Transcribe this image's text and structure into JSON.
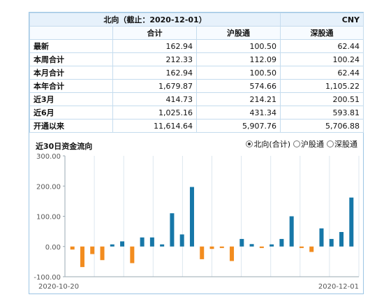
{
  "table": {
    "title": "北向（截止：2020-12-01）",
    "currency": "CNY",
    "columns": [
      "合计",
      "沪股通",
      "深股通"
    ],
    "rows": [
      {
        "label": "最新",
        "values": [
          "162.94",
          "100.50",
          "62.44"
        ]
      },
      {
        "label": "本周合计",
        "values": [
          "212.33",
          "112.09",
          "100.24"
        ]
      },
      {
        "label": "本月合计",
        "values": [
          "162.94",
          "100.50",
          "62.44"
        ]
      },
      {
        "label": "本年合计",
        "values": [
          "1,679.87",
          "574.66",
          "1,105.22"
        ]
      },
      {
        "label": "近3月",
        "values": [
          "414.73",
          "214.21",
          "200.51"
        ]
      },
      {
        "label": "近6月",
        "values": [
          "1,025.16",
          "431.34",
          "593.81"
        ]
      },
      {
        "label": "开通以来",
        "values": [
          "11,614.64",
          "5,907.76",
          "5,706.88"
        ]
      }
    ]
  },
  "chart_section": {
    "title": "近30日资金流向",
    "options": [
      {
        "label": "北向(合计)",
        "selected": true
      },
      {
        "label": "沪股通",
        "selected": false
      },
      {
        "label": "深股通",
        "selected": false
      }
    ]
  },
  "chart_data": {
    "type": "bar",
    "title": "近30日资金流向",
    "ylim": [
      -100,
      300
    ],
    "yticks": [
      "300.00",
      "200.00",
      "100.00",
      "0.00",
      "-100.00"
    ],
    "ytick_values": [
      300,
      200,
      100,
      0,
      -100
    ],
    "x_start_label": "2020-10-20",
    "x_end_label": "2020-12-01",
    "values": [
      -10,
      -68,
      -25,
      -45,
      7,
      17,
      -55,
      30,
      30,
      7,
      110,
      40,
      197,
      -42,
      -8,
      -5,
      -48,
      25,
      8,
      -5,
      7,
      25,
      100,
      -5,
      -18,
      60,
      25,
      48,
      162
    ],
    "colors": {
      "positive": "#1677a8",
      "negative": "#f28c1f"
    },
    "grid": "vertical-lines"
  }
}
